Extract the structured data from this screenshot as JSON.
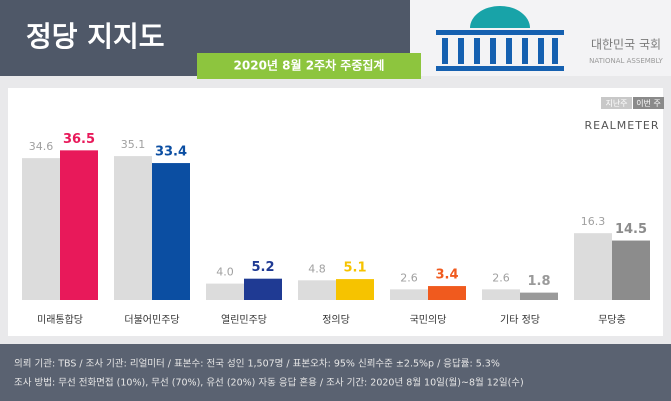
{
  "header": {
    "title": "정당 지지도",
    "subtitle": "2020년 8월 2주차 주중집계",
    "logo_text": "대한민국 국회",
    "logo_subtext": "NATIONAL ASSEMBLY"
  },
  "chart_data": {
    "type": "bar",
    "source": "REALMETER",
    "categories": [
      "미래통합당",
      "더불어민주당",
      "열린민주당",
      "정의당",
      "국민의당",
      "기타 정당",
      "무당층"
    ],
    "series": [
      {
        "name": "지난주",
        "color": "#dcdcdc",
        "values": [
          34.6,
          35.1,
          4.0,
          4.8,
          2.6,
          2.6,
          16.3
        ],
        "value_labels": [
          "34.6",
          "35.1",
          "4.0",
          "4.8",
          "2.6",
          "2.6",
          "16.3"
        ]
      },
      {
        "name": "이번 주",
        "colors": [
          "#e8195a",
          "#0b4ea2",
          "#1f3a93",
          "#f6c300",
          "#f05a1e",
          "#9a9a9a",
          "#8c8c8c"
        ],
        "values": [
          36.5,
          33.4,
          5.2,
          5.1,
          3.4,
          1.8,
          14.5
        ]
      }
    ]
  },
  "footer": {
    "lines": [
      "의뢰 기관: TBS / 조사 기관: 리얼미터 / 표본수: 전국 성인 1,507명 / 표본오차: 95% 신뢰수준 ±2.5%p / 응답률: 5.3%",
      "조사 방법: 무선 전화면접 (10%), 무선 (70%), 유선 (20%) 자동 응답 혼용 / 조사 기간: 2020년 8월 10일(월)~8월 12일(수)"
    ]
  }
}
